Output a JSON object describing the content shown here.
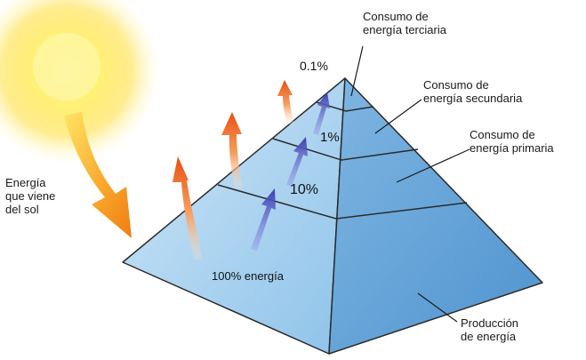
{
  "sun_label": {
    "line1": "Energía",
    "line2": "que viene",
    "line3": "del sol"
  },
  "levels": {
    "tertiary": {
      "line1": "Consumo de",
      "line2": "energía terciaria",
      "percent": "0.1%"
    },
    "secondary": {
      "line1": "Consumo de",
      "line2": "energía secundaria",
      "percent": "1%"
    },
    "primary": {
      "line1": "Consumo de",
      "line2": "energía primaria",
      "percent": "10%"
    },
    "production": {
      "line1": "Producción",
      "line2": "de energía",
      "percent": "100% energía"
    }
  },
  "colors": {
    "pyramid_light": "#cfe6f7",
    "pyramid_mid": "#8ec3ea",
    "pyramid_dark": "#4f93cf",
    "energy_arrow": "#ee6a1c",
    "flow_arrow": "#4a52b8",
    "sun": "#ffe14a"
  }
}
